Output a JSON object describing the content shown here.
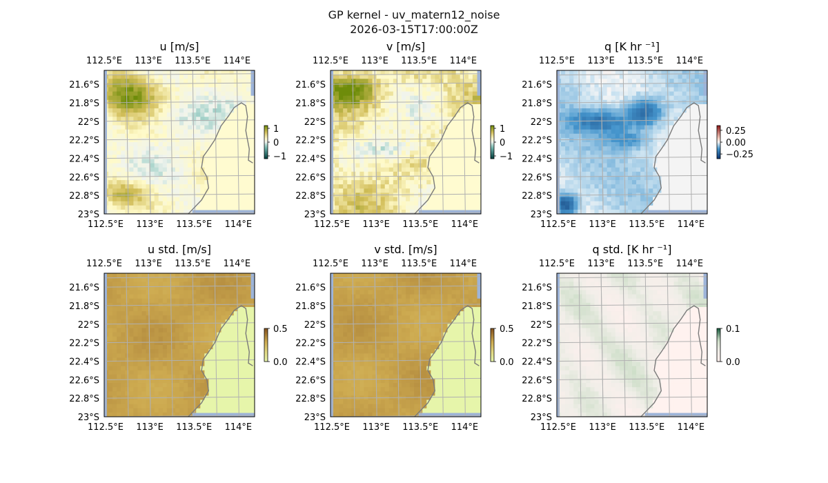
{
  "figure": {
    "title": "GP kernel - uv_matern12_noise",
    "timestamp": "2026-03-15T17:00:00Z"
  },
  "lon_ticks": [
    "112.5°E",
    "113°E",
    "113.5°E",
    "114°E"
  ],
  "lat_ticks": [
    "21.6°S",
    "21.8°S",
    "22°S",
    "22.2°S",
    "22.4°S",
    "22.6°S",
    "22.8°S",
    "23°S"
  ],
  "map_extent": {
    "lon": [
      112.5,
      114.2
    ],
    "lat": [
      -23.0,
      -21.45
    ]
  },
  "panels": [
    {
      "title": "u [m/s]",
      "colormap": "brown-white-teal (BrBG-like)",
      "colorbar_ticks": [
        "1",
        "0",
        "−1"
      ],
      "colorbar_range": [
        -1.2,
        1.2
      ]
    },
    {
      "title": "v [m/s]",
      "colormap": "brown-white-teal (BrBG-like)",
      "colorbar_ticks": [
        "1",
        "0",
        "−1"
      ],
      "colorbar_range": [
        -1.2,
        1.2
      ]
    },
    {
      "title": "q [K hr ⁻¹]",
      "colormap": "red-white-blue (RdBu-like)",
      "colorbar_ticks": [
        "0.25",
        "0.00",
        "−0.25"
      ],
      "colorbar_range": [
        -0.35,
        0.35
      ]
    },
    {
      "title": "u std. [m/s]",
      "colormap": "green-yellow-brown",
      "colorbar_ticks": [
        "0.5",
        "0.0"
      ],
      "colorbar_range": [
        0.0,
        0.5
      ]
    },
    {
      "title": "v std. [m/s]",
      "colormap": "green-yellow-brown",
      "colorbar_ticks": [
        "0.5",
        "0.0"
      ],
      "colorbar_range": [
        0.0,
        0.5
      ]
    },
    {
      "title": "q std. [K hr ⁻¹]",
      "colormap": "white-green-pink",
      "colorbar_ticks": [
        "0.1",
        "0.0"
      ],
      "colorbar_range": [
        0.0,
        0.1
      ]
    }
  ],
  "colors": {
    "ocean_edge": "#9db4d9",
    "gridline": "#b0b0b0",
    "coastline": "#7a7a7a"
  }
}
